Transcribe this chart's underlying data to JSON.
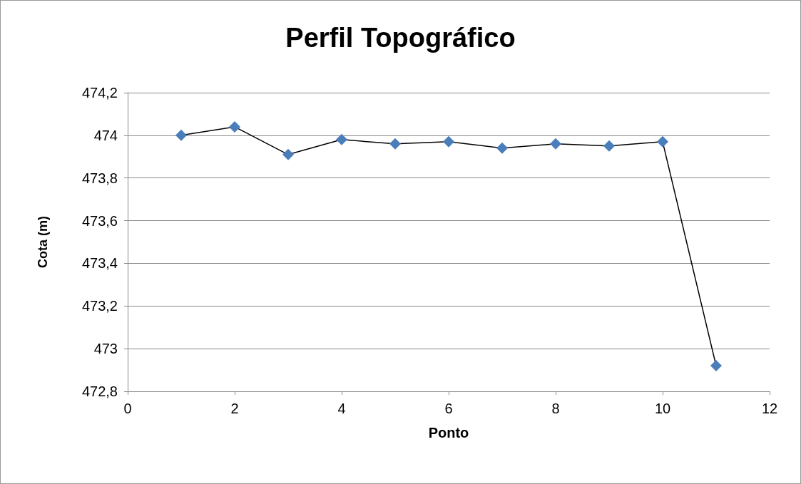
{
  "chart_data": {
    "type": "line",
    "title": "Perfil Topográfico",
    "xlabel": "Ponto",
    "ylabel": "Cota (m)",
    "x": [
      1,
      2,
      3,
      4,
      5,
      6,
      7,
      8,
      9,
      10,
      11
    ],
    "series": [
      {
        "color": "#000000",
        "colors": [
          "#4a7ebb",
          "#4a7ebb",
          "#4a7ebb",
          "#4a7ebb",
          "#4a7ebb",
          "#4a7ebb",
          "#4a7ebb",
          "#4a7ebb",
          "#4a7ebb",
          "#4a7ebb",
          "#4a7ebb"
        ],
        "values": [
          474.0,
          474.04,
          473.91,
          473.98,
          473.96,
          473.97,
          473.94,
          473.96,
          473.95,
          473.97,
          472.92
        ]
      }
    ],
    "xlim": [
      0,
      12
    ],
    "xticks": [
      0,
      2,
      4,
      6,
      8,
      10,
      12
    ],
    "ylim": [
      472.8,
      474.2
    ],
    "yticks": [
      {
        "value": 472.8,
        "label": "472,8"
      },
      473,
      {
        "value": 473.2,
        "label": "473,2"
      },
      {
        "value": 473.4,
        "label": "473,4"
      },
      {
        "value": 473.6,
        "label": "473,6"
      },
      {
        "value": 473.8,
        "label": "473,8"
      },
      474,
      {
        "value": 474.2,
        "label": "474,2"
      }
    ],
    "grid": "y",
    "marker": "diamond",
    "line_style": "solid"
  }
}
